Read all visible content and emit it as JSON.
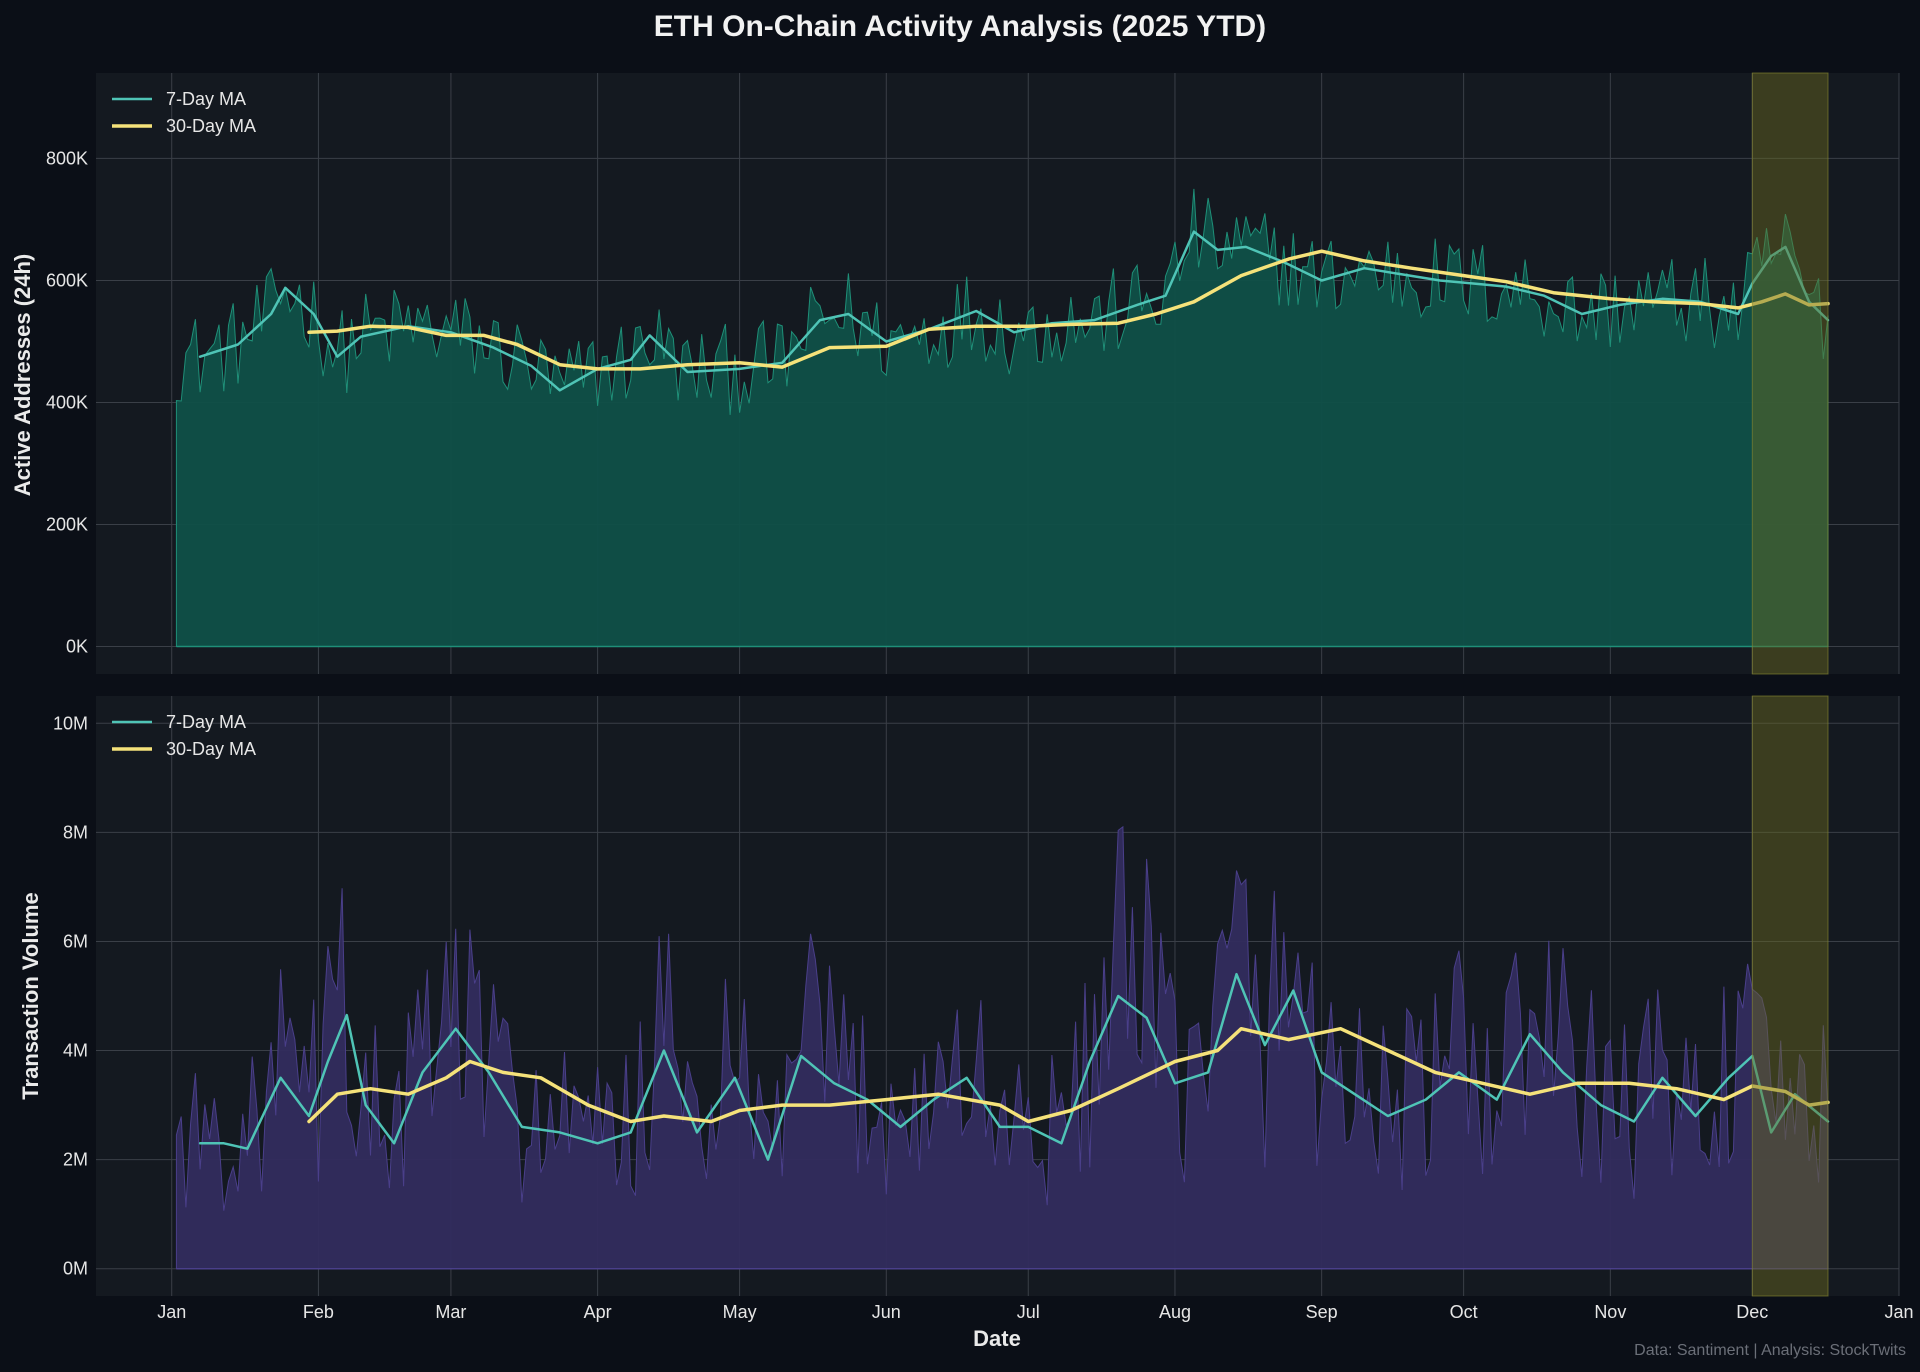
{
  "title": "ETH On-Chain Activity Analysis (2025 YTD)",
  "source_note": "Data: Santiment | Analysis: StockTwits",
  "colors": {
    "background": "#0b0f17",
    "panel": "#141920",
    "grid": "#3a3f47",
    "addresses_fill": "#0f5048",
    "addresses_spike": "#1f8f78",
    "volume_fill": "#322c5e",
    "volume_spike": "#4a3f8a",
    "ma7": "#4fc4b6",
    "ma30": "#f5e27a",
    "highlight": "#6a6a1f"
  },
  "chart_data": [
    {
      "type": "area",
      "panel": "top",
      "ylabel": "Active Addresses (24h)",
      "xlabel": "",
      "x_ticks": [
        "Jan",
        "Feb",
        "Mar",
        "Apr",
        "May",
        "Jun",
        "Jul",
        "Aug",
        "Sep",
        "Oct",
        "Nov",
        "Dec",
        "Jan"
      ],
      "x_tick_dates": [
        "2025-01-01",
        "2025-02-01",
        "2025-03-01",
        "2025-04-01",
        "2025-05-01",
        "2025-06-01",
        "2025-07-01",
        "2025-08-01",
        "2025-09-01",
        "2025-10-01",
        "2025-11-01",
        "2025-12-01",
        "2026-01-01"
      ],
      "xlim": [
        "2024-12-16",
        "2026-01-01"
      ],
      "y_ticks": [
        "0K",
        "200K",
        "400K",
        "600K",
        "800K"
      ],
      "y_tick_values": [
        0,
        200000,
        400000,
        600000,
        800000
      ],
      "ylim": [
        -45000,
        940000
      ],
      "grid": true,
      "legend": "top-left",
      "highlight_range": [
        "2025-12-01",
        "2025-12-17"
      ],
      "series": [
        {
          "name": "7-Day MA",
          "x": [
            "2025-01-07",
            "2025-01-15",
            "2025-01-22",
            "2025-01-25",
            "2025-01-31",
            "2025-02-05",
            "2025-02-10",
            "2025-02-20",
            "2025-03-01",
            "2025-03-10",
            "2025-03-18",
            "2025-03-24",
            "2025-04-01",
            "2025-04-08",
            "2025-04-12",
            "2025-04-20",
            "2025-05-01",
            "2025-05-10",
            "2025-05-18",
            "2025-05-24",
            "2025-06-01",
            "2025-06-10",
            "2025-06-20",
            "2025-06-28",
            "2025-07-06",
            "2025-07-15",
            "2025-07-24",
            "2025-07-30",
            "2025-08-05",
            "2025-08-10",
            "2025-08-16",
            "2025-08-24",
            "2025-09-01",
            "2025-09-10",
            "2025-09-18",
            "2025-09-26",
            "2025-10-03",
            "2025-10-10",
            "2025-10-18",
            "2025-10-26",
            "2025-11-03",
            "2025-11-12",
            "2025-11-20",
            "2025-11-28",
            "2025-12-01",
            "2025-12-05",
            "2025-12-08",
            "2025-12-13",
            "2025-12-17"
          ],
          "y": [
            475000,
            495000,
            545000,
            588000,
            545000,
            475000,
            508000,
            525000,
            515000,
            490000,
            460000,
            420000,
            455000,
            470000,
            510000,
            450000,
            455000,
            465000,
            535000,
            545000,
            500000,
            520000,
            550000,
            515000,
            530000,
            535000,
            560000,
            575000,
            680000,
            650000,
            655000,
            630000,
            600000,
            620000,
            610000,
            600000,
            595000,
            590000,
            575000,
            545000,
            560000,
            570000,
            565000,
            545000,
            595000,
            640000,
            655000,
            565000,
            535000
          ]
        },
        {
          "name": "30-Day MA",
          "x": [
            "2025-01-30",
            "2025-02-05",
            "2025-02-12",
            "2025-02-20",
            "2025-02-28",
            "2025-03-08",
            "2025-03-15",
            "2025-03-24",
            "2025-04-01",
            "2025-04-10",
            "2025-04-20",
            "2025-05-01",
            "2025-05-10",
            "2025-05-20",
            "2025-06-01",
            "2025-06-10",
            "2025-06-20",
            "2025-07-01",
            "2025-07-10",
            "2025-07-20",
            "2025-07-28",
            "2025-08-05",
            "2025-08-15",
            "2025-08-25",
            "2025-09-01",
            "2025-09-10",
            "2025-09-20",
            "2025-10-01",
            "2025-10-10",
            "2025-10-20",
            "2025-11-01",
            "2025-11-10",
            "2025-11-20",
            "2025-11-28",
            "2025-12-03",
            "2025-12-08",
            "2025-12-13",
            "2025-12-17"
          ],
          "y": [
            515000,
            517000,
            525000,
            523000,
            510000,
            510000,
            495000,
            462000,
            455000,
            455000,
            462000,
            465000,
            458000,
            490000,
            492000,
            520000,
            525000,
            525000,
            528000,
            530000,
            545000,
            565000,
            608000,
            635000,
            648000,
            632000,
            620000,
            608000,
            598000,
            580000,
            570000,
            565000,
            562000,
            555000,
            565000,
            578000,
            560000,
            562000
          ]
        }
      ]
    },
    {
      "type": "area",
      "panel": "bottom",
      "ylabel": "Transaction Volume",
      "xlabel": "Date",
      "x_ticks": [
        "Jan",
        "Feb",
        "Mar",
        "Apr",
        "May",
        "Jun",
        "Jul",
        "Aug",
        "Sep",
        "Oct",
        "Nov",
        "Dec",
        "Jan"
      ],
      "x_tick_dates": [
        "2025-01-01",
        "2025-02-01",
        "2025-03-01",
        "2025-04-01",
        "2025-05-01",
        "2025-06-01",
        "2025-07-01",
        "2025-08-01",
        "2025-09-01",
        "2025-10-01",
        "2025-11-01",
        "2025-12-01",
        "2026-01-01"
      ],
      "xlim": [
        "2024-12-16",
        "2026-01-01"
      ],
      "y_ticks": [
        "0M",
        "2M",
        "4M",
        "6M",
        "8M",
        "10M"
      ],
      "y_tick_values": [
        0,
        2000000,
        4000000,
        6000000,
        8000000,
        10000000
      ],
      "ylim": [
        -500000,
        10500000
      ],
      "grid": true,
      "legend": "top-left",
      "highlight_range": [
        "2025-12-01",
        "2025-12-17"
      ],
      "series": [
        {
          "name": "7-Day MA",
          "x": [
            "2025-01-07",
            "2025-01-12",
            "2025-01-17",
            "2025-01-24",
            "2025-01-30",
            "2025-02-03",
            "2025-02-07",
            "2025-02-11",
            "2025-02-17",
            "2025-02-23",
            "2025-03-02",
            "2025-03-09",
            "2025-03-16",
            "2025-03-24",
            "2025-04-01",
            "2025-04-08",
            "2025-04-15",
            "2025-04-22",
            "2025-04-30",
            "2025-05-07",
            "2025-05-14",
            "2025-05-21",
            "2025-05-28",
            "2025-06-04",
            "2025-06-11",
            "2025-06-18",
            "2025-06-25",
            "2025-07-01",
            "2025-07-08",
            "2025-07-14",
            "2025-07-20",
            "2025-07-26",
            "2025-08-01",
            "2025-08-08",
            "2025-08-14",
            "2025-08-20",
            "2025-08-26",
            "2025-09-01",
            "2025-09-08",
            "2025-09-15",
            "2025-09-23",
            "2025-09-30",
            "2025-10-08",
            "2025-10-15",
            "2025-10-22",
            "2025-10-30",
            "2025-11-06",
            "2025-11-12",
            "2025-11-19",
            "2025-11-26",
            "2025-12-01",
            "2025-12-05",
            "2025-12-10",
            "2025-12-17"
          ],
          "y": [
            2300000,
            2300000,
            2200000,
            3500000,
            2800000,
            3800000,
            4650000,
            3000000,
            2300000,
            3600000,
            4400000,
            3600000,
            2600000,
            2500000,
            2300000,
            2500000,
            4000000,
            2500000,
            3500000,
            2000000,
            3900000,
            3400000,
            3100000,
            2600000,
            3100000,
            3500000,
            2600000,
            2600000,
            2300000,
            3800000,
            5000000,
            4600000,
            3400000,
            3600000,
            5400000,
            4100000,
            5100000,
            3600000,
            3200000,
            2800000,
            3100000,
            3600000,
            3100000,
            4300000,
            3600000,
            3000000,
            2700000,
            3500000,
            2800000,
            3500000,
            3900000,
            2500000,
            3200000,
            2700000
          ]
        },
        {
          "name": "30-Day MA",
          "x": [
            "2025-01-30",
            "2025-02-05",
            "2025-02-12",
            "2025-02-20",
            "2025-02-28",
            "2025-03-05",
            "2025-03-12",
            "2025-03-20",
            "2025-03-30",
            "2025-04-08",
            "2025-04-15",
            "2025-04-25",
            "2025-05-01",
            "2025-05-10",
            "2025-05-20",
            "2025-06-01",
            "2025-06-12",
            "2025-06-25",
            "2025-07-01",
            "2025-07-10",
            "2025-07-20",
            "2025-08-01",
            "2025-08-10",
            "2025-08-15",
            "2025-08-25",
            "2025-09-05",
            "2025-09-15",
            "2025-09-25",
            "2025-10-05",
            "2025-10-15",
            "2025-10-25",
            "2025-11-05",
            "2025-11-15",
            "2025-11-25",
            "2025-12-01",
            "2025-12-08",
            "2025-12-13",
            "2025-12-17"
          ],
          "y": [
            2700000,
            3200000,
            3300000,
            3200000,
            3500000,
            3800000,
            3600000,
            3500000,
            3000000,
            2700000,
            2800000,
            2700000,
            2900000,
            3000000,
            3000000,
            3100000,
            3200000,
            3000000,
            2700000,
            2900000,
            3300000,
            3800000,
            4000000,
            4400000,
            4200000,
            4400000,
            4000000,
            3600000,
            3400000,
            3200000,
            3400000,
            3400000,
            3300000,
            3100000,
            3350000,
            3250000,
            3000000,
            3050000
          ]
        }
      ]
    }
  ]
}
